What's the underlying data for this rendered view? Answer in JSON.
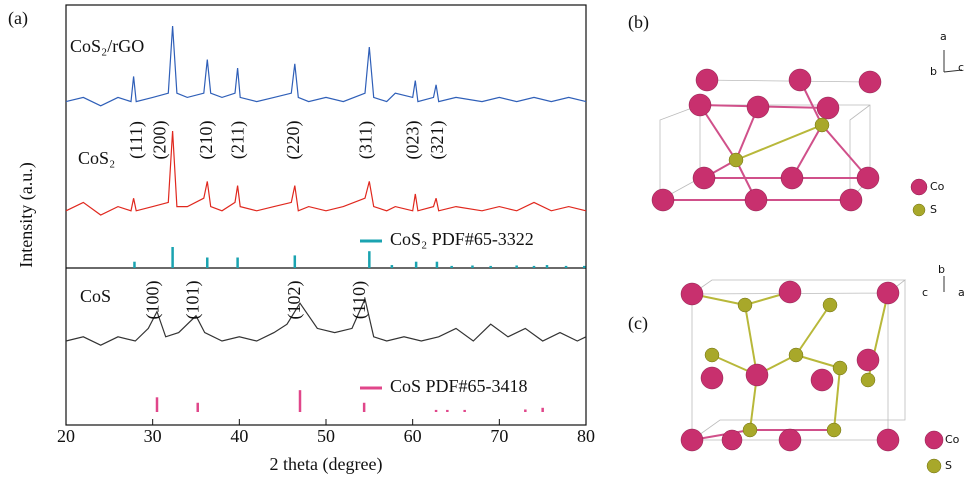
{
  "chart_data": {
    "type": "line",
    "title": "(a)",
    "xlabel": "2 theta (degree)",
    "ylabel": "Intensity (a.u.)",
    "xlim": [
      20,
      80
    ],
    "xticks": [
      20,
      30,
      40,
      50,
      60,
      70,
      80
    ],
    "ylim": [
      0,
      100
    ],
    "series": [
      {
        "name": "CoS₂/rGO",
        "color": "#2f5fb8",
        "x": [
          20,
          22,
          24,
          26,
          27.5,
          27.8,
          28.1,
          30,
          31.8,
          32.3,
          32.8,
          34,
          35.9,
          36.3,
          36.7,
          38,
          39.5,
          39.8,
          40.1,
          42,
          44,
          46,
          46.4,
          46.8,
          48,
          50,
          52,
          54.5,
          55,
          55.5,
          57,
          58,
          60,
          60.3,
          60.6,
          62.4,
          62.7,
          63,
          65,
          68,
          70,
          72,
          74,
          76,
          78,
          80
        ],
        "values": [
          77,
          78,
          76,
          78,
          77,
          83,
          77,
          78,
          79,
          95,
          79,
          78,
          79,
          87,
          79,
          78,
          79,
          85,
          78,
          77,
          78,
          79,
          86,
          78,
          77,
          78,
          77,
          79,
          90,
          78,
          77,
          79,
          78,
          82,
          77,
          78,
          81,
          77,
          78,
          77,
          78,
          77,
          78,
          77,
          78,
          77
        ]
      },
      {
        "name": "CoS₂",
        "color": "#e0281e",
        "x": [
          20,
          22,
          24,
          26,
          27.5,
          27.8,
          28.1,
          30,
          31.8,
          32.3,
          32.8,
          34,
          35.9,
          36.3,
          36.7,
          38,
          39.5,
          39.8,
          40.1,
          42,
          44,
          46,
          46.4,
          46.8,
          48,
          50,
          52,
          54.5,
          55,
          55.5,
          57,
          58,
          60,
          60.3,
          60.6,
          62.4,
          62.7,
          63,
          65,
          68,
          70,
          72,
          74,
          76,
          78,
          80
        ],
        "values": [
          51,
          53,
          50,
          52,
          51,
          54,
          51,
          52,
          53,
          70,
          52,
          52,
          54,
          58,
          52,
          51,
          53,
          57,
          52,
          51,
          52,
          53,
          57,
          51,
          52,
          51,
          52,
          54,
          58,
          52,
          51,
          52,
          51,
          55,
          51,
          52,
          54,
          51,
          52,
          51,
          52,
          51,
          53,
          51,
          52,
          51
        ]
      },
      {
        "name": "CoS",
        "color": "#333333",
        "x": [
          20,
          22,
          24,
          26,
          28,
          29.5,
          30.5,
          31.5,
          33,
          35,
          36,
          38,
          40,
          42,
          44,
          45.5,
          47,
          48,
          49,
          51,
          53,
          54.5,
          55.5,
          57,
          59,
          61,
          63,
          65,
          67,
          69,
          71,
          73,
          75,
          77,
          79,
          80
        ],
        "values": [
          20,
          21,
          19,
          21,
          20,
          23,
          27,
          21,
          22,
          26,
          22,
          20,
          21,
          20,
          22,
          24,
          29,
          26,
          23,
          22,
          23,
          30,
          21,
          20,
          21,
          20,
          21,
          23,
          20,
          24,
          21,
          23,
          20,
          22,
          20,
          21
        ]
      }
    ],
    "references": [
      {
        "name": "CoS₂ PDF#65-3322",
        "color": "#1aa3b0",
        "x": [
          27.9,
          32.3,
          36.3,
          39.8,
          46.4,
          55,
          57.6,
          60.4,
          62.8,
          64.5,
          66.9,
          69,
          72,
          74,
          75.5,
          77.7,
          79.8
        ],
        "values": [
          1.5,
          5,
          2.5,
          2.5,
          3,
          4,
          0.7,
          1.5,
          1.5,
          0.5,
          0.6,
          0.5,
          0.6,
          0.5,
          0.7,
          0.5,
          0.5
        ]
      },
      {
        "name": "CoS PDF#65-3418",
        "color": "#e0468a",
        "x": [
          30.5,
          35.2,
          47,
          54.4,
          62.7,
          64,
          66,
          73,
          75
        ],
        "values": [
          3.5,
          2.2,
          5.2,
          2.2,
          0.5,
          0.5,
          0.5,
          0.6,
          1
        ]
      }
    ],
    "annotations": [
      {
        "x": 28.3,
        "label": "(111)"
      },
      {
        "x": 31.0,
        "label": "(200)"
      },
      {
        "x": 36.4,
        "label": "(210)"
      },
      {
        "x": 40.0,
        "label": "(211)"
      },
      {
        "x": 46.4,
        "label": "(220)"
      },
      {
        "x": 54.8,
        "label": "(311)"
      },
      {
        "x": 60.2,
        "label": "(023)"
      },
      {
        "x": 63.0,
        "label": "(321)"
      },
      {
        "x": 30.2,
        "label": "(100)"
      },
      {
        "x": 34.8,
        "label": "(101)"
      },
      {
        "x": 46.5,
        "label": "(102)"
      },
      {
        "x": 54.0,
        "label": "(110)"
      }
    ]
  },
  "structures": [
    {
      "label": "(b)",
      "legend": [
        "Co",
        "S"
      ],
      "axes": [
        "a",
        "b",
        "c"
      ]
    },
    {
      "label": "(c)",
      "legend": [
        "Co",
        "S"
      ],
      "axes": [
        "b",
        "c",
        "a"
      ]
    }
  ]
}
